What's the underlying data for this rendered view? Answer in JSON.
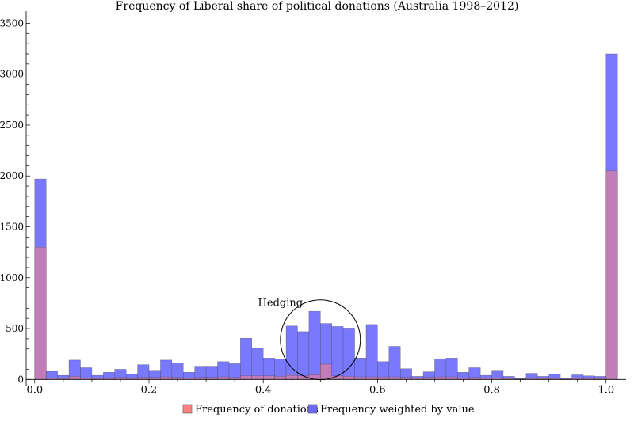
{
  "chart_data": {
    "type": "bar",
    "title": "Frequency of Liberal share of political donations (Australia 1998–2012)",
    "xlabel": "",
    "ylabel": "",
    "xlim": [
      0,
      1.02
    ],
    "ylim": [
      0,
      3500
    ],
    "x_ticks": [
      "0.0",
      "0.2",
      "0.4",
      "0.6",
      "0.8",
      "1.0"
    ],
    "y_ticks": [
      "0",
      "500",
      "1000",
      "1500",
      "2000",
      "2500",
      "3000",
      "3500"
    ],
    "bin_width": 0.02,
    "bin_starts": [
      0.0,
      0.02,
      0.04,
      0.06,
      0.08,
      0.1,
      0.12,
      0.14,
      0.16,
      0.18,
      0.2,
      0.22,
      0.24,
      0.26,
      0.28,
      0.3,
      0.32,
      0.34,
      0.36,
      0.38,
      0.4,
      0.42,
      0.44,
      0.46,
      0.48,
      0.5,
      0.52,
      0.54,
      0.56,
      0.58,
      0.6,
      0.62,
      0.64,
      0.66,
      0.68,
      0.7,
      0.72,
      0.74,
      0.76,
      0.78,
      0.8,
      0.82,
      0.84,
      0.86,
      0.88,
      0.9,
      0.92,
      0.94,
      0.96,
      0.98,
      1.0
    ],
    "series": [
      {
        "name": "Frequency weighted by value",
        "color": "#6a6aff",
        "values": [
          1970,
          80,
          40,
          190,
          115,
          40,
          70,
          100,
          50,
          145,
          90,
          190,
          160,
          70,
          130,
          130,
          175,
          155,
          405,
          310,
          210,
          200,
          525,
          470,
          670,
          550,
          520,
          505,
          210,
          540,
          175,
          325,
          105,
          30,
          75,
          200,
          210,
          70,
          115,
          40,
          90,
          30,
          10,
          60,
          30,
          50,
          15,
          45,
          35,
          30,
          3200
        ]
      },
      {
        "name": "Frequency of donations",
        "color": "#ff8080",
        "values": [
          1300,
          15,
          10,
          30,
          15,
          10,
          10,
          20,
          10,
          20,
          20,
          25,
          20,
          15,
          20,
          20,
          25,
          20,
          35,
          35,
          35,
          30,
          40,
          35,
          45,
          150,
          35,
          30,
          25,
          25,
          25,
          25,
          20,
          15,
          20,
          25,
          25,
          15,
          20,
          15,
          15,
          10,
          5,
          10,
          10,
          10,
          5,
          10,
          10,
          10,
          2050
        ]
      }
    ],
    "annotations": [
      {
        "text": "Hedging",
        "x": 0.43,
        "y": 720
      }
    ],
    "highlight_circle": {
      "cx": 0.5,
      "cy": 390,
      "radius_x_units": 0.07
    },
    "legend": {
      "position": "bottom-center"
    },
    "grid": false
  }
}
